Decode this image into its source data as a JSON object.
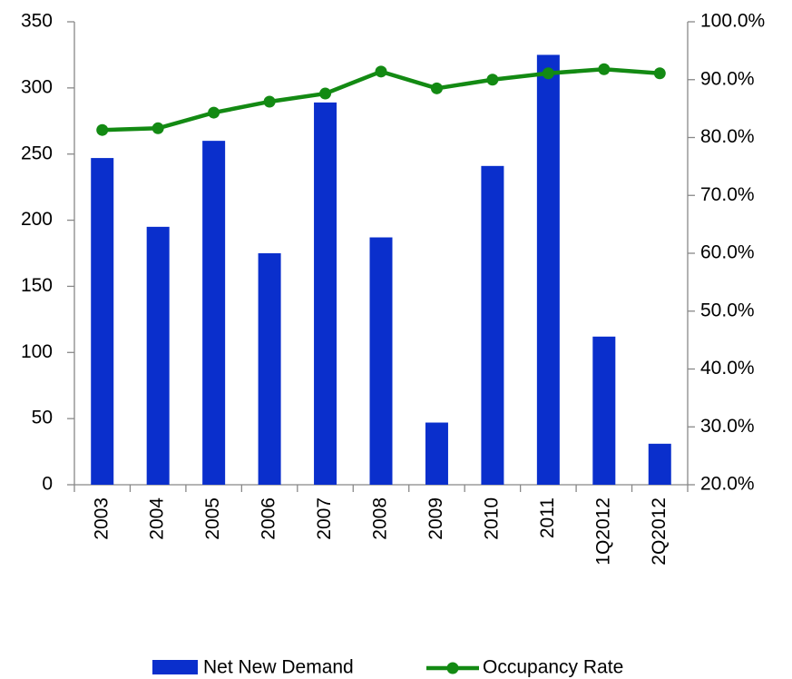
{
  "chart_data": {
    "type": "bar_line",
    "categories": [
      "2003",
      "2004",
      "2005",
      "2006",
      "2007",
      "2008",
      "2009",
      "2010",
      "2011",
      "1Q2012",
      "2Q2012"
    ],
    "series": [
      {
        "name": "Net New Demand",
        "color": "#0a2fcc",
        "type": "bar",
        "values": [
          247,
          195,
          260,
          175,
          289,
          187,
          47,
          241,
          325,
          112,
          31
        ]
      },
      {
        "name": "Occupancy Rate",
        "color": "#138a13",
        "type": "line",
        "axis": "y2",
        "values": [
          81.3,
          81.6,
          84.3,
          86.2,
          87.6,
          91.4,
          88.5,
          90.0,
          91.1,
          91.8,
          91.1
        ]
      }
    ],
    "ylim": [
      0,
      350
    ],
    "yticks": [
      0,
      50,
      100,
      150,
      200,
      250,
      300,
      350
    ],
    "y2lim": [
      20,
      100
    ],
    "y2ticks": [
      {
        "value": 20,
        "label": "20.0%"
      },
      {
        "value": 30,
        "label": "30.0%"
      },
      {
        "value": 40,
        "label": "40.0%"
      },
      {
        "value": 50,
        "label": "50.0%"
      },
      {
        "value": 60,
        "label": "60.0%"
      },
      {
        "value": 70,
        "label": "70.0%"
      },
      {
        "value": 80,
        "label": "80.0%"
      },
      {
        "value": 90,
        "label": "90.0%"
      },
      {
        "value": 100,
        "label": "100.0%"
      }
    ],
    "legend": "bottom",
    "grid": false
  }
}
